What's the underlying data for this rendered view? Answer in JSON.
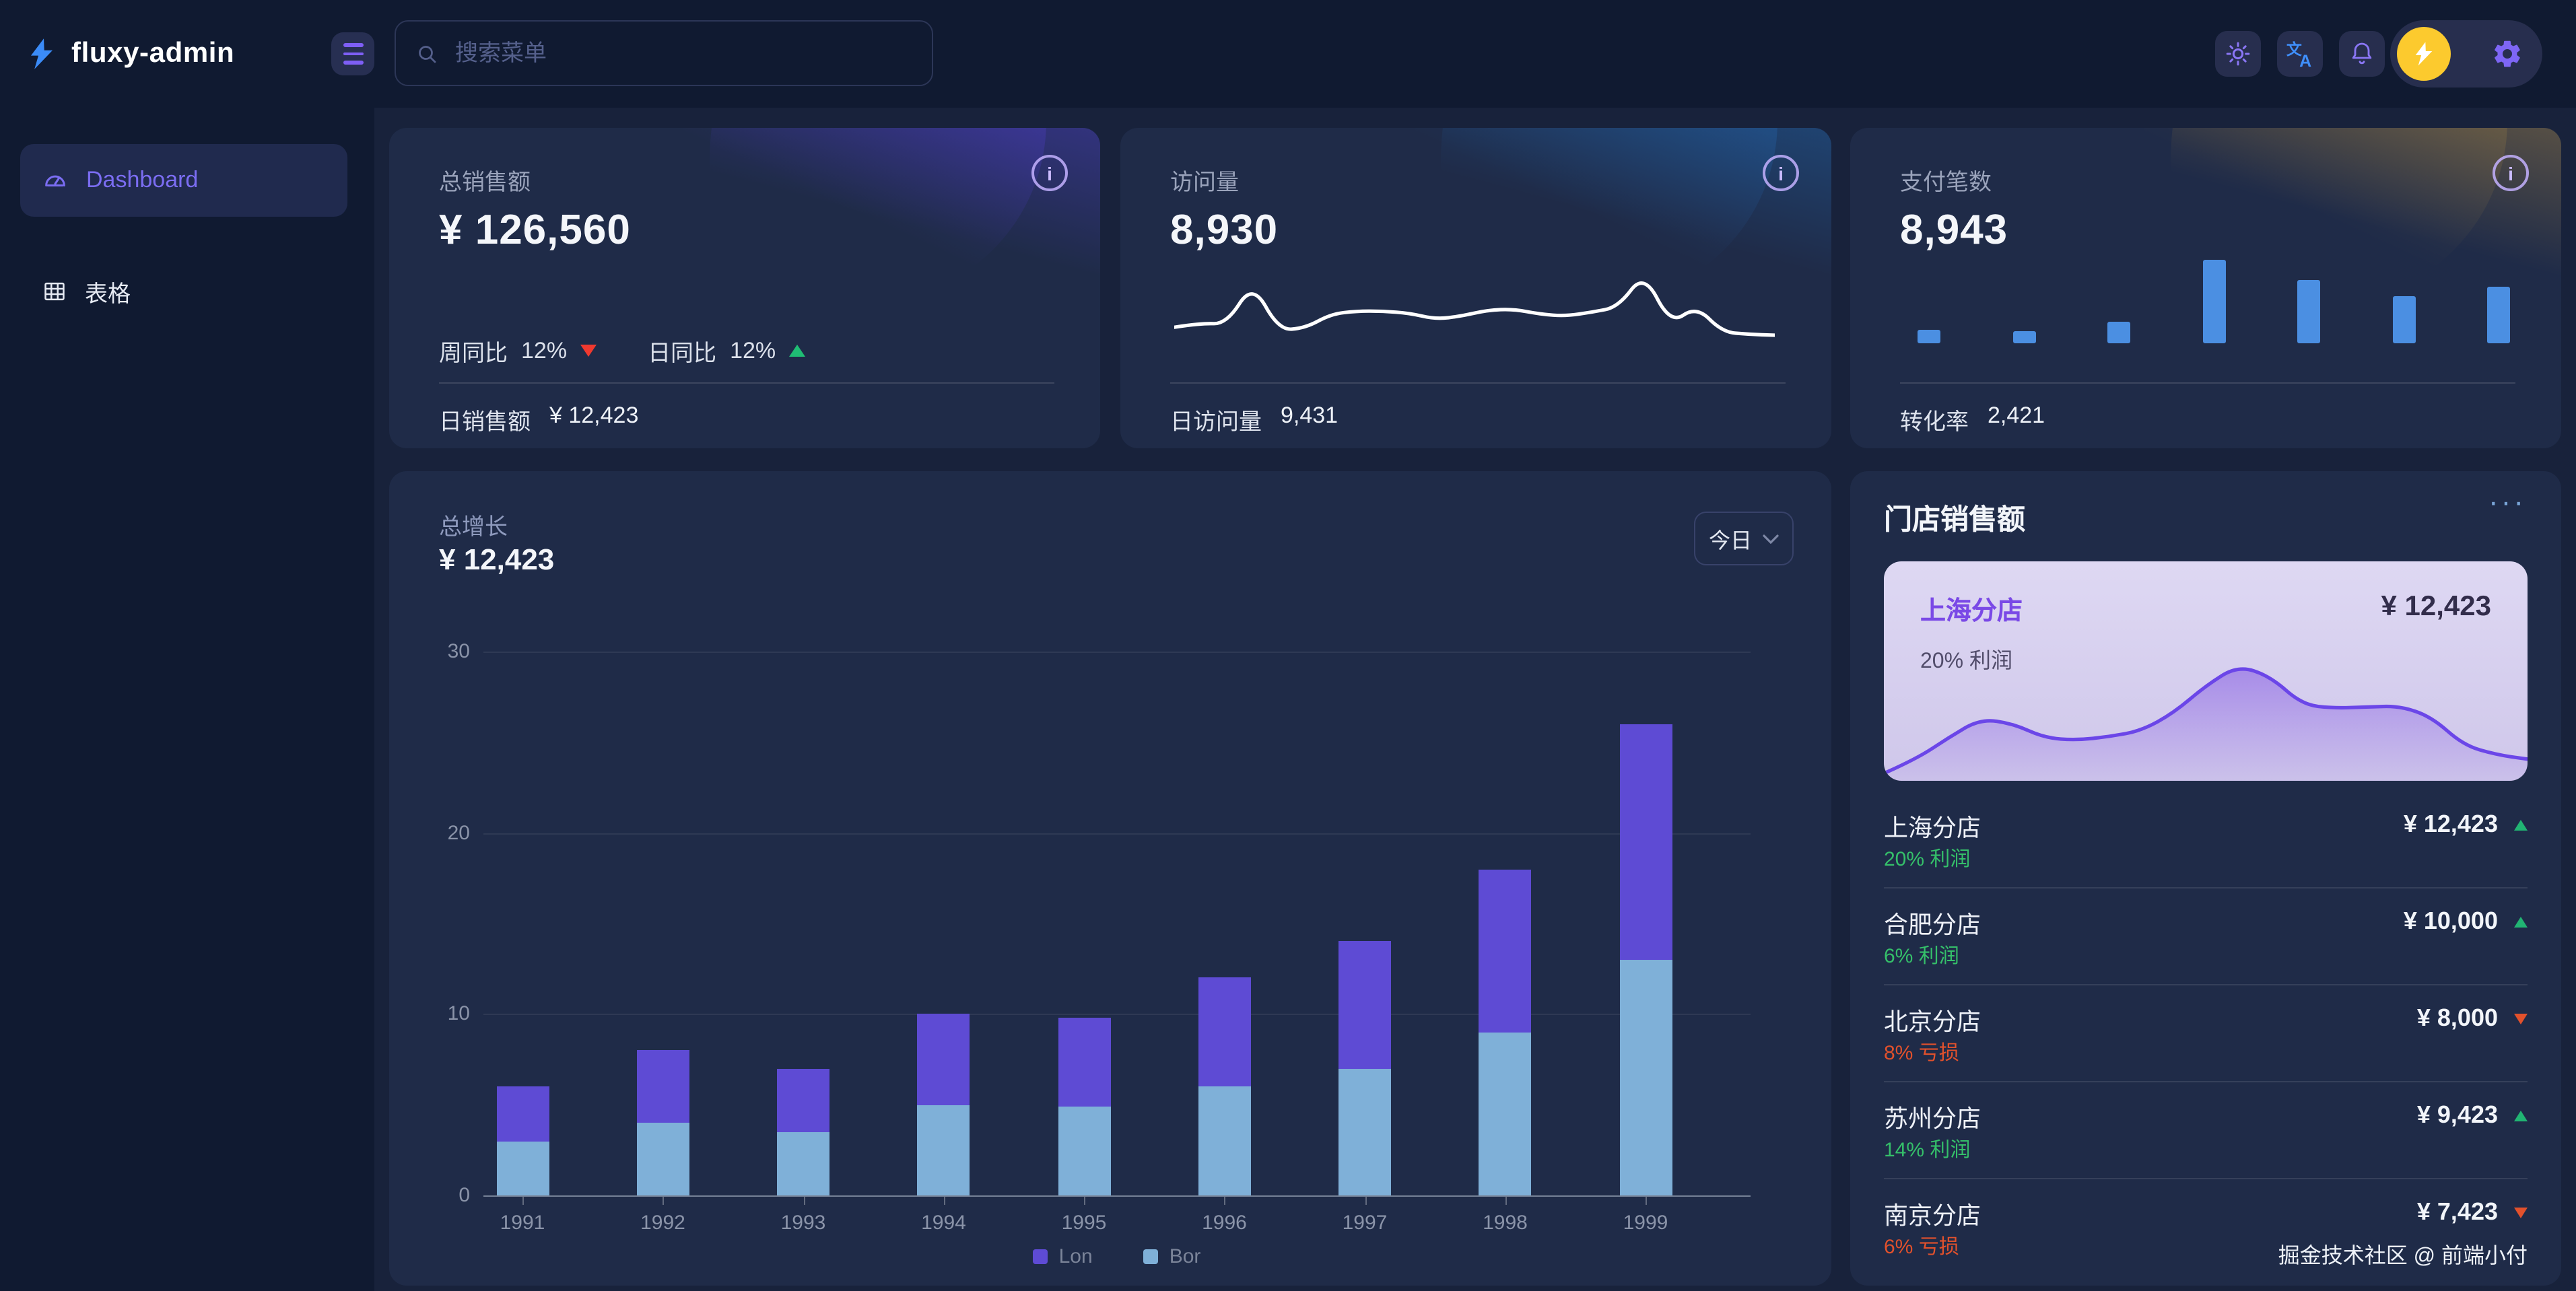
{
  "topbar": {
    "logo": "fluxy-admin",
    "search_placeholder": "搜索菜单"
  },
  "sidebar": {
    "items": [
      {
        "label": "Dashboard",
        "active": true
      },
      {
        "label": "表格",
        "active": false
      }
    ]
  },
  "stat_cards": {
    "sales": {
      "title": "总销售额",
      "value": "¥ 126,560",
      "week_label": "周同比",
      "week_value": "12%",
      "week_trend": "down",
      "day_label": "日同比",
      "day_value": "12%",
      "day_trend": "up",
      "footer_label": "日销售额",
      "footer_value": "¥ 12,423"
    },
    "visits": {
      "title": "访问量",
      "value": "8,930",
      "footer_label": "日访问量",
      "footer_value": "9,431",
      "sparkline": [
        16,
        20,
        19,
        60,
        13,
        15,
        29,
        32,
        32,
        30,
        24,
        27,
        33,
        34,
        29,
        27,
        31,
        36,
        70,
        19,
        37,
        11,
        9,
        8
      ],
      "line_color": "#ffffff"
    },
    "payments": {
      "title": "支付笔数",
      "value": "8,943",
      "footer_label": "转化率",
      "footer_value": "2,421",
      "bars": [
        16,
        14,
        26,
        100,
        76,
        56,
        68
      ],
      "bar_color": "#4b8fe2"
    }
  },
  "growth": {
    "title": "总增长",
    "value": "¥ 12,423",
    "range": "今日"
  },
  "chart_data": {
    "type": "bar",
    "stacked": true,
    "title": "总增长",
    "categories": [
      "1991",
      "1992",
      "1993",
      "1994",
      "1995",
      "1996",
      "1997",
      "1998",
      "1999"
    ],
    "series": [
      {
        "name": "Lon",
        "color": "#5e4bd4",
        "values": [
          3,
          4,
          3.5,
          5,
          4.9,
          6,
          7,
          9,
          13
        ]
      },
      {
        "name": "Bor",
        "color": "#7fb0d8",
        "values": [
          3,
          4,
          3.5,
          5,
          4.9,
          6,
          7,
          9,
          13
        ]
      }
    ],
    "stack_order": [
      "Bor",
      "Lon"
    ],
    "ylim": [
      0,
      30
    ],
    "yticks": [
      30,
      20,
      10,
      0
    ],
    "legend_position": "bottom",
    "grid": true
  },
  "store_panel": {
    "title": "门店销售额",
    "more": "···",
    "highlight": {
      "name": "上海分店",
      "value": "¥ 12,423",
      "note": "20% 利润",
      "line_color": "#6b46e8",
      "area": [
        4,
        16,
        34,
        50,
        46,
        34,
        32,
        35,
        40,
        55,
        78,
        95,
        86,
        62,
        59,
        60,
        61,
        52,
        28,
        20,
        16
      ]
    },
    "stores": [
      {
        "name": "上海分店",
        "value": "¥ 12,423",
        "trend": "up",
        "note": "20% 利润"
      },
      {
        "name": "合肥分店",
        "value": "¥ 10,000",
        "trend": "up",
        "note": "6% 利润"
      },
      {
        "name": "北京分店",
        "value": "¥ 8,000",
        "trend": "down",
        "note": "8% 亏损"
      },
      {
        "name": "苏州分店",
        "value": "¥ 9,423",
        "trend": "up",
        "note": "14% 利润"
      },
      {
        "name": "南京分店",
        "value": "¥ 7,423",
        "trend": "down",
        "note": "6% 亏损"
      }
    ]
  },
  "footer": "掘金技术社区 @ 前端小付",
  "colors": {
    "accent_purple": "#7b6df2",
    "up_green": "#21b573",
    "down_red": "#f0392f",
    "down_orange": "#e2512c",
    "avatar_yellow": "#fcca2e",
    "translate_blue": "#3f8ffc"
  }
}
